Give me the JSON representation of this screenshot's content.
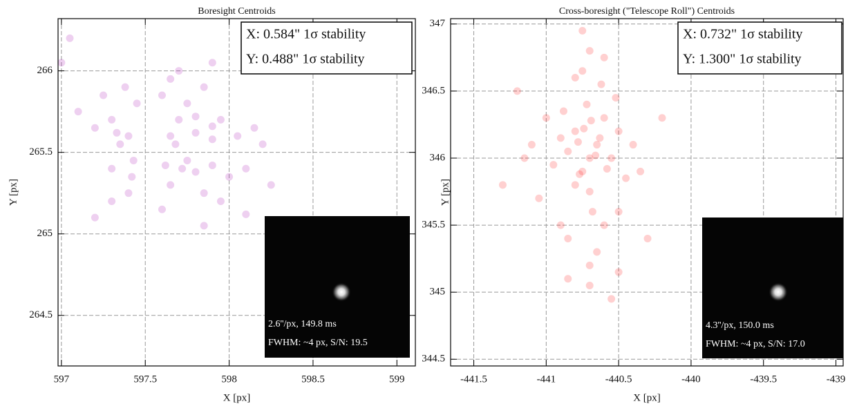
{
  "chart_data": [
    {
      "type": "scatter",
      "title": "Boresight Centroids",
      "x_label": "X [px]",
      "y_label": "Y [px]",
      "color": "rgba(176,40,186,0.22)",
      "grid": true,
      "xlim": [
        596.98,
        599.11
      ],
      "ylim": [
        264.19,
        266.32
      ],
      "xticks": [
        597,
        597.5,
        598,
        598.5,
        599
      ],
      "yticks": [
        264.5,
        265,
        265.5,
        266
      ],
      "annotations": [
        "X: 0.584\" 1σ stability",
        "Y: 0.488\" 1σ stability"
      ],
      "inset_annotations": [
        "2.6''/px, 149.8 ms",
        "FWHM: ~4 px, S/N: 19.5"
      ],
      "x": [
        597.3,
        597.4,
        597.45,
        597.35,
        597.42,
        597.3,
        597.2,
        597.38,
        597.65,
        597.7,
        597.8,
        597.9,
        597.75,
        597.85,
        597.95,
        598.05,
        597.68,
        597.6,
        597.72,
        597.8,
        597.9,
        598.0,
        597.65,
        597.85,
        597.95,
        598.1,
        597.62,
        597.75,
        598.15,
        597.25,
        597.1,
        597.4,
        597.3,
        597.7,
        597.9,
        598.2,
        598.25,
        597.6,
        597.05,
        597.0,
        598.3,
        597.85,
        598.1,
        597.2,
        598.4,
        597.43,
        597.8,
        597.9,
        597.65,
        597.33
      ],
      "y": [
        265.7,
        265.6,
        265.8,
        265.55,
        265.35,
        265.4,
        265.65,
        265.9,
        265.6,
        265.7,
        265.62,
        265.58,
        265.8,
        265.9,
        265.7,
        265.6,
        265.55,
        265.85,
        265.4,
        265.38,
        265.42,
        265.35,
        265.3,
        265.25,
        265.2,
        265.4,
        265.42,
        265.45,
        265.65,
        265.85,
        265.75,
        265.25,
        265.2,
        266.0,
        266.05,
        265.55,
        265.3,
        265.15,
        266.2,
        266.05,
        265.0,
        265.05,
        265.12,
        265.1,
        265.05,
        265.45,
        265.72,
        265.66,
        265.95,
        265.62
      ]
    },
    {
      "type": "scatter",
      "title": "Cross-boresight (\"Telescope Roll\") Centroids",
      "x_label": "X [px]",
      "y_label": "Y [px]",
      "color": "rgba(255,20,20,0.2)",
      "grid": true,
      "xlim": [
        -441.66,
        -438.95
      ],
      "ylim": [
        344.45,
        347.04
      ],
      "xticks": [
        -441.5,
        -441,
        -440.5,
        -440,
        -439.5,
        -439
      ],
      "yticks": [
        344.5,
        345,
        345.5,
        346,
        346.5,
        347
      ],
      "annotations": [
        "X: 0.732\" 1σ stability",
        "Y: 1.300\" 1σ stability"
      ],
      "inset_annotations": [
        "4.3''/px, 150.0 ms",
        "FWHM: ~4 px, S/N: 17.0"
      ],
      "x": [
        -440.7,
        -440.65,
        -440.8,
        -440.75,
        -440.6,
        -440.85,
        -440.7,
        -440.55,
        -440.9,
        -440.72,
        -440.68,
        -440.8,
        -440.62,
        -440.5,
        -440.95,
        -440.75,
        -440.6,
        -440.85,
        -440.45,
        -441.0,
        -440.7,
        -440.4,
        -441.05,
        -440.65,
        -440.78,
        -440.66,
        -440.74,
        -440.58,
        -440.88,
        -440.52,
        -440.8,
        -440.7,
        -440.5,
        -441.1,
        -440.35,
        -440.9,
        -440.6,
        -440.7,
        -440.55,
        -441.3,
        -440.2,
        -441.2,
        -440.75,
        -440.5,
        -440.85,
        -440.3,
        -441.15,
        -440.63,
        -440.77,
        -440.69
      ],
      "y": [
        346.0,
        346.1,
        346.2,
        345.9,
        346.3,
        346.05,
        345.75,
        346.0,
        346.15,
        346.4,
        345.6,
        345.8,
        346.55,
        346.2,
        345.95,
        346.65,
        345.5,
        345.4,
        345.85,
        346.3,
        346.8,
        346.1,
        345.7,
        345.3,
        346.12,
        346.02,
        346.22,
        345.92,
        346.35,
        346.45,
        346.6,
        345.2,
        345.6,
        346.1,
        345.9,
        345.5,
        346.75,
        345.05,
        344.95,
        345.8,
        346.3,
        346.5,
        346.95,
        345.15,
        345.1,
        345.4,
        346.0,
        346.15,
        345.88,
        346.28
      ]
    }
  ]
}
